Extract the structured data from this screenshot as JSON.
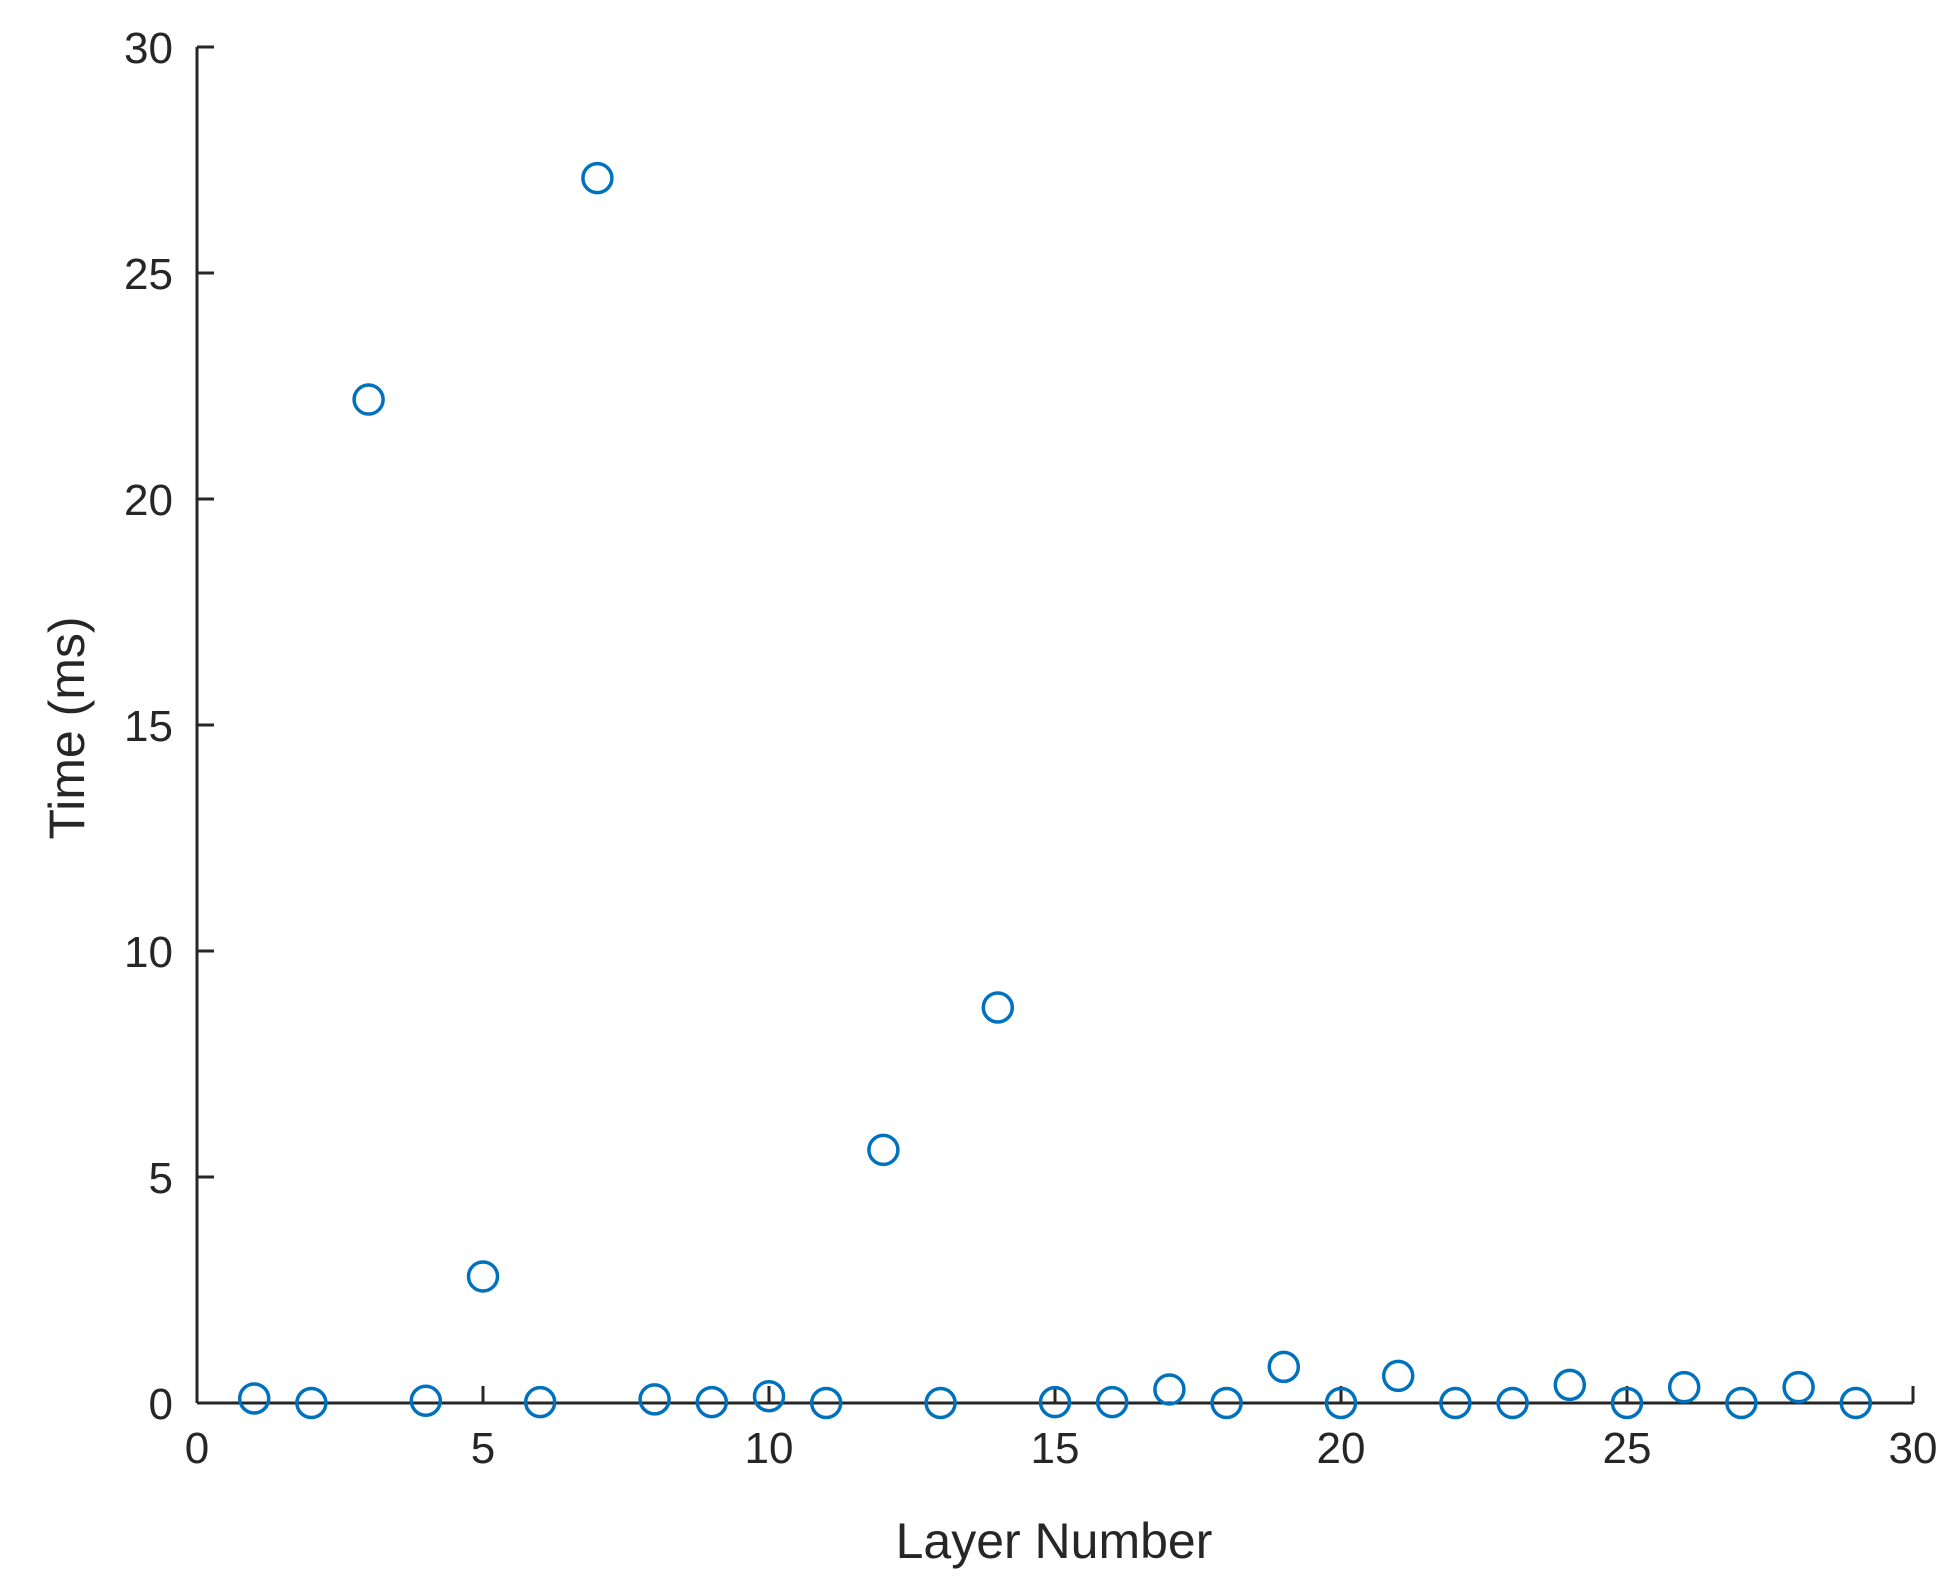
{
  "chart_data": {
    "type": "scatter",
    "title": "",
    "xlabel": "Layer Number",
    "ylabel": "Time (ms)",
    "xlim": [
      0,
      30
    ],
    "ylim": [
      0,
      30
    ],
    "xticks": [
      0,
      5,
      10,
      15,
      20,
      25,
      30
    ],
    "yticks": [
      0,
      5,
      10,
      15,
      20,
      25,
      30
    ],
    "grid": false,
    "marker": "circle-open",
    "color": "#0072BD",
    "series": [
      {
        "x": [
          1,
          2,
          3,
          4,
          5,
          6,
          7,
          8,
          9,
          10,
          11,
          12,
          13,
          14,
          15,
          16,
          17,
          18,
          19,
          20,
          21,
          22,
          23,
          24,
          25,
          26,
          27,
          28,
          29
        ],
        "y": [
          0.1,
          0.0,
          22.2,
          0.05,
          2.8,
          0.02,
          27.1,
          0.08,
          0.02,
          0.15,
          0.0,
          5.6,
          0.0,
          8.75,
          0.02,
          0.02,
          0.3,
          0.0,
          0.8,
          0.0,
          0.6,
          0.0,
          0.0,
          0.4,
          0.0,
          0.35,
          0.0,
          0.35,
          0.0
        ]
      }
    ]
  }
}
